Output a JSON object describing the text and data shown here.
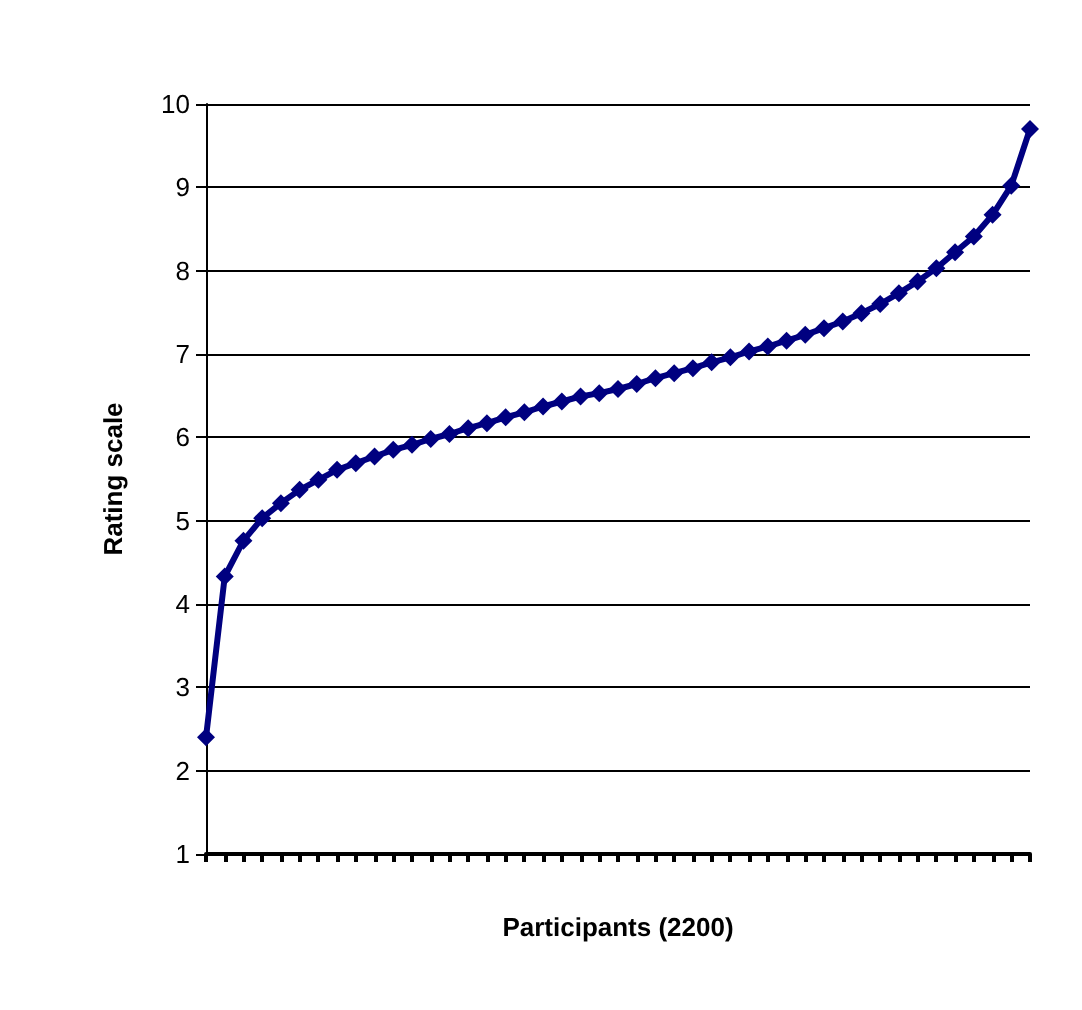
{
  "chart_data": {
    "type": "line",
    "xlabel": "Participants (2200)",
    "ylabel": "Rating scale",
    "categories": [
      null,
      null,
      null,
      null,
      null,
      null,
      null,
      null,
      null,
      null,
      null,
      null,
      null,
      null,
      null,
      null,
      null,
      null,
      null,
      null,
      null,
      null,
      null,
      null,
      null,
      null,
      null,
      null,
      null,
      null,
      null,
      null,
      null,
      null,
      null,
      null,
      null,
      null,
      null,
      null,
      null,
      null,
      null,
      null,
      null
    ],
    "series": [
      {
        "color": "#000080",
        "values": [
          2.4,
          4.33,
          4.76,
          5.03,
          5.21,
          5.37,
          5.49,
          5.61,
          5.69,
          5.77,
          5.85,
          5.91,
          5.98,
          6.04,
          6.11,
          6.17,
          6.24,
          6.3,
          6.37,
          6.43,
          6.49,
          6.53,
          6.58,
          6.64,
          6.71,
          6.77,
          6.83,
          6.9,
          6.96,
          7.03,
          7.09,
          7.16,
          7.23,
          7.31,
          7.39,
          7.49,
          7.6,
          7.73,
          7.87,
          8.03,
          8.22,
          8.41,
          8.67,
          9.02,
          9.7
        ]
      }
    ],
    "ylim": [
      1,
      10
    ],
    "yticks": [
      1,
      2,
      3,
      4,
      5,
      6,
      7,
      8,
      9,
      10
    ],
    "grid": "y",
    "marker": "diamond",
    "line_style": "solid"
  }
}
